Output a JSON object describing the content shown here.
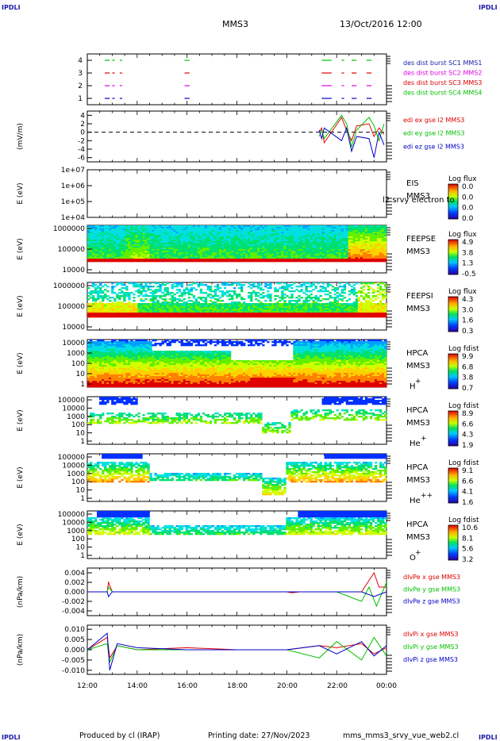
{
  "header": {
    "corner_label": "IPDLI",
    "spacecraft": "MMS3",
    "datetime": "13/Oct/2016 12:00"
  },
  "footer": {
    "produced_by": "Produced by cl (IRAP)",
    "printing_date": "Printing date: 27/Nov/2023",
    "filename": "mms_mms3_srvy_vue_web2.cl"
  },
  "x_axis": {
    "ticks": [
      "12:00",
      "14:00",
      "16:00",
      "18:00",
      "20:00",
      "22:00",
      "00:00"
    ]
  },
  "colors": {
    "red": "#e00000",
    "green": "#00c000",
    "blue": "#0000c8",
    "magenta": "#e000e0",
    "legend_blue": "#1a1aa8"
  },
  "chart_data": [
    {
      "type": "line",
      "panel": "burst",
      "y_ticks": [
        "4",
        "3",
        "2",
        "1"
      ],
      "ylim": [
        0.5,
        4.5
      ],
      "legend": [
        "des dist burst SC1 MMS1",
        "des dist burst SC2 MMS2",
        "des dist burst SC3 MMS3",
        "des dist burst SC4 MMS4"
      ],
      "legend_colors": [
        "#1a1aa8",
        "#e000e0",
        "#e00000",
        "#00c000"
      ],
      "series": [
        {
          "level": 4,
          "color": "#00c000",
          "segments": [
            [
              12.7,
              12.9
            ],
            [
              13.0,
              13.1
            ],
            [
              13.3,
              13.4
            ],
            [
              15.9,
              16.1
            ],
            [
              21.4,
              21.8
            ],
            [
              22.2,
              22.3
            ],
            [
              22.6,
              22.8
            ],
            [
              23.2,
              23.4
            ]
          ]
        },
        {
          "level": 3,
          "color": "#e00000",
          "segments": [
            [
              12.7,
              12.9
            ],
            [
              13.0,
              13.1
            ],
            [
              13.3,
              13.4
            ],
            [
              15.9,
              16.1
            ],
            [
              21.4,
              21.8
            ],
            [
              22.2,
              22.3
            ],
            [
              22.6,
              22.8
            ],
            [
              23.2,
              23.4
            ]
          ]
        },
        {
          "level": 2,
          "color": "#e000e0",
          "segments": [
            [
              12.7,
              12.9
            ],
            [
              13.0,
              13.1
            ],
            [
              13.3,
              13.4
            ],
            [
              15.9,
              16.1
            ],
            [
              21.4,
              21.8
            ],
            [
              22.2,
              22.3
            ],
            [
              22.6,
              22.8
            ],
            [
              23.2,
              23.4
            ]
          ]
        },
        {
          "level": 1,
          "color": "#0000c8",
          "segments": [
            [
              12.7,
              12.9
            ],
            [
              13.0,
              13.1
            ],
            [
              13.3,
              13.4
            ],
            [
              15.9,
              16.1
            ],
            [
              21.4,
              21.8
            ],
            [
              22.2,
              22.3
            ],
            [
              22.6,
              22.8
            ],
            [
              23.2,
              23.4
            ]
          ]
        }
      ]
    },
    {
      "type": "line",
      "panel": "edi",
      "ylabel": "(mV/m)",
      "y_ticks": [
        "4",
        "2",
        "0",
        "-2",
        "-4",
        "-6"
      ],
      "ylim": [
        -7,
        5
      ],
      "legend": [
        "edi ex gse l2 MMS3",
        "edi ey gse l2 MMS3",
        "edi ez gse l2 MMS3"
      ],
      "legend_colors": [
        "#e00000",
        "#00c000",
        "#0000c8"
      ],
      "series": [
        {
          "name": "edi ex gse l2 MMS3",
          "color": "#e00000",
          "x": [
            21.3,
            21.4,
            21.5,
            22.2,
            22.4,
            22.6,
            22.8,
            23.3,
            23.5,
            23.7,
            23.9
          ],
          "y": [
            0.0,
            1.0,
            -2.5,
            3.5,
            0.5,
            -2.0,
            1.5,
            2.0,
            -1.0,
            1.0,
            -0.5
          ]
        },
        {
          "name": "edi ey gse l2 MMS3",
          "color": "#00c000",
          "x": [
            21.3,
            21.4,
            21.5,
            22.2,
            22.4,
            22.6,
            22.8,
            23.3,
            23.5,
            23.7,
            23.9
          ],
          "y": [
            -1.0,
            0.5,
            -1.5,
            4.0,
            2.0,
            -3.5,
            0.5,
            3.5,
            1.5,
            -2.0,
            2.0
          ]
        },
        {
          "name": "edi ez gse l2 MMS3",
          "color": "#0000c8",
          "x": [
            21.3,
            21.4,
            21.5,
            22.2,
            22.4,
            22.6,
            22.8,
            23.3,
            23.5,
            23.7,
            23.9
          ],
          "y": [
            0.5,
            -1.5,
            1.0,
            -2.0,
            1.0,
            -4.5,
            -1.0,
            -1.5,
            -6.0,
            0.0,
            -3.0
          ]
        }
      ]
    },
    {
      "type": "heatmap",
      "panel": "eis",
      "ylabel": "E (eV)",
      "y_ticks": [
        "1e+07",
        "1e+06",
        "1e+05",
        "1e+04"
      ],
      "ylim": [
        10000,
        10000000
      ],
      "label_lines": [
        "EIS",
        "MMS3"
      ],
      "overlay_text": "l2 srvy electron to",
      "colorbar_title": "Log flux",
      "colorbar_ticks": [
        "0.0",
        "0.0",
        "0.0",
        "0.0"
      ]
    },
    {
      "type": "heatmap",
      "panel": "feeps_e",
      "ylabel": "E (eV)",
      "y_ticks": [
        "1000000",
        "100000",
        "10000"
      ],
      "ylim": [
        10000,
        1000000
      ],
      "label_lines": [
        "FEEPSE",
        "MMS3"
      ],
      "colorbar_title": "Log flux",
      "colorbar_ticks": [
        "4.9",
        "3.8",
        "1.3",
        "-0.5"
      ]
    },
    {
      "type": "heatmap",
      "panel": "feeps_i",
      "ylabel": "E (eV)",
      "y_ticks": [
        "1000000",
        "100000",
        "10000"
      ],
      "ylim": [
        10000,
        1000000
      ],
      "label_lines": [
        "FEEPSI",
        "MMS3"
      ],
      "colorbar_title": "Log flux",
      "colorbar_ticks": [
        "4.3",
        "3.0",
        "1.6",
        "0.3"
      ]
    },
    {
      "type": "heatmap",
      "panel": "hpca_h",
      "ylabel": "E (eV)",
      "y_ticks": [
        "10000",
        "1000",
        "100",
        "10",
        "1"
      ],
      "ylim": [
        1,
        40000
      ],
      "label_lines": [
        "HPCA",
        "MMS3",
        "H"
      ],
      "species_sup": "+",
      "colorbar_title": "Log fdist",
      "colorbar_ticks": [
        "9.9",
        "6.8",
        "3.8",
        "0.7"
      ]
    },
    {
      "type": "heatmap",
      "panel": "hpca_he",
      "ylabel": "E (eV)",
      "y_ticks": [
        "100000",
        "10000",
        "1000",
        "100",
        "10",
        "1"
      ],
      "ylim": [
        1,
        100000
      ],
      "label_lines": [
        "HPCA",
        "MMS3",
        "He"
      ],
      "species_sup": "+",
      "colorbar_title": "Log fdist",
      "colorbar_ticks": [
        "8.9",
        "6.6",
        "4.3",
        "1.9"
      ]
    },
    {
      "type": "heatmap",
      "panel": "hpca_he2",
      "ylabel": "E (eV)",
      "y_ticks": [
        "100000",
        "10000",
        "1000",
        "100",
        "10",
        "1"
      ],
      "ylim": [
        1,
        100000
      ],
      "label_lines": [
        "HPCA",
        "MMS3",
        "He"
      ],
      "species_sup": "++",
      "colorbar_title": "Log fdist",
      "colorbar_ticks": [
        "9.1",
        "6.6",
        "4.1",
        "1.6"
      ]
    },
    {
      "type": "heatmap",
      "panel": "hpca_o",
      "ylabel": "E (eV)",
      "y_ticks": [
        "100000",
        "10000",
        "1000",
        "100",
        "10",
        "1"
      ],
      "ylim": [
        1,
        100000
      ],
      "label_lines": [
        "HPCA",
        "MMS3",
        "O"
      ],
      "species_sup": "+",
      "colorbar_title": "Log fdist",
      "colorbar_ticks": [
        "10.6",
        "8.1",
        "5.6",
        "3.2"
      ]
    },
    {
      "type": "line",
      "panel": "divpe",
      "ylabel": "(nPa/km)",
      "y_ticks": [
        "0.004",
        "0.002",
        "0.000",
        "-0.002",
        "-0.004"
      ],
      "ylim": [
        -0.005,
        0.005
      ],
      "legend": [
        "dIvPe x gse MMS3",
        "dIvPe y gse MMS3",
        "dIvPe z gse MMS3"
      ],
      "legend_colors": [
        "#e00000",
        "#00c000",
        "#0000c8"
      ],
      "series": [
        {
          "name": "dIvPe x gse MMS3",
          "color": "#e00000",
          "x": [
            12.0,
            12.8,
            12.85,
            13.0,
            16.0,
            20.0,
            20.2,
            20.5,
            21.0,
            22.0,
            23.0,
            23.5,
            23.7,
            24.0
          ],
          "y": [
            0.0,
            0.0,
            0.002,
            0.0,
            0.0,
            0.0,
            -0.0002,
            0.0,
            0.0,
            0.0,
            0.0,
            0.004,
            0.001,
            0.001
          ]
        },
        {
          "name": "dIvPe y gse MMS3",
          "color": "#00c000",
          "x": [
            12.0,
            12.8,
            12.85,
            13.0,
            16.0,
            20.0,
            21.0,
            22.0,
            23.0,
            23.3,
            23.6,
            24.0
          ],
          "y": [
            0.0,
            0.0,
            0.001,
            0.0,
            0.0,
            0.0,
            0.0,
            0.0,
            -0.002,
            0.001,
            -0.003,
            0.002
          ]
        },
        {
          "name": "dIvPe z gse MMS3",
          "color": "#0000c8",
          "x": [
            12.0,
            12.8,
            12.85,
            13.0,
            16.0,
            21.0,
            22.0,
            23.0,
            23.5,
            24.0
          ],
          "y": [
            0.0,
            0.0,
            -0.001,
            0.0,
            0.0,
            0.0,
            0.0,
            0.0,
            -0.001,
            0.0
          ]
        }
      ]
    },
    {
      "type": "line",
      "panel": "divpi",
      "ylabel": "(nPa/km)",
      "y_ticks": [
        "0.010",
        "0.005",
        "0.000",
        "-0.005",
        "-0.010"
      ],
      "ylim": [
        -0.012,
        0.012
      ],
      "legend": [
        "dIvPi x gse MMS3",
        "dIvPi y gse MMS3",
        "dIvPi z gse MMS3"
      ],
      "legend_colors": [
        "#e00000",
        "#00c000",
        "#0000c8"
      ],
      "series": [
        {
          "name": "dIvPi x gse MMS3",
          "color": "#e00000",
          "x": [
            12.0,
            12.8,
            12.9,
            13.2,
            14.0,
            16.0,
            18.0,
            20.0,
            21.3,
            22.0,
            23.0,
            23.5,
            24.0
          ],
          "y": [
            0.0,
            0.006,
            -0.004,
            0.002,
            0.0,
            0.001,
            0.0,
            0.0,
            0.002,
            0.001,
            0.003,
            -0.002,
            0.001
          ]
        },
        {
          "name": "dIvPi y gse MMS3",
          "color": "#00c000",
          "x": [
            12.0,
            12.8,
            12.9,
            13.2,
            14.0,
            16.0,
            18.0,
            20.0,
            21.3,
            22.0,
            23.0,
            23.5,
            24.0
          ],
          "y": [
            0.0,
            0.003,
            -0.006,
            0.002,
            0.0,
            0.0,
            0.0,
            0.0,
            -0.004,
            0.004,
            -0.005,
            0.006,
            -0.003
          ]
        },
        {
          "name": "dIvPi z gse MMS3",
          "color": "#0000c8",
          "x": [
            12.0,
            12.8,
            12.9,
            13.2,
            14.0,
            16.0,
            18.0,
            20.0,
            21.3,
            22.0,
            23.0,
            23.5,
            24.0
          ],
          "y": [
            0.0,
            0.008,
            -0.01,
            0.003,
            0.001,
            0.0,
            0.0,
            0.0,
            0.002,
            -0.002,
            0.004,
            -0.003,
            0.002
          ]
        }
      ]
    }
  ]
}
